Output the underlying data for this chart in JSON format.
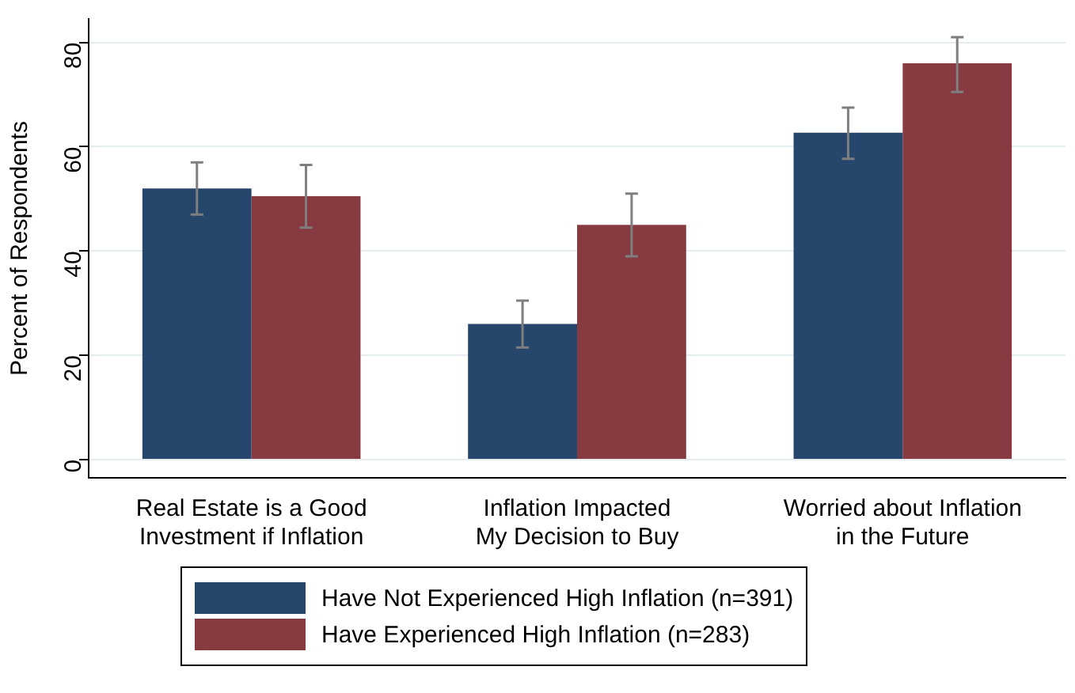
{
  "chart_data": {
    "type": "bar",
    "ylabel": "Percent of Respondents",
    "categories": [
      "Real Estate is a Good\nInvestment if Inflation",
      "Inflation Impacted\nMy Decision to Buy",
      "Worried about Inflation\nin the Future"
    ],
    "series": [
      {
        "name": "Have Not Experienced High Inflation (n=391)",
        "color": "#27466b",
        "values": [
          52,
          26,
          62.7
        ],
        "errors": [
          [
            47,
            57
          ],
          [
            21.5,
            30.5
          ],
          [
            57.7,
            67.5
          ]
        ]
      },
      {
        "name": "Have Experienced High Inflation (n=283)",
        "color": "#873a3f",
        "values": [
          50.5,
          45,
          76
        ],
        "errors": [
          [
            44.5,
            56.5
          ],
          [
            39,
            51
          ],
          [
            70.5,
            81
          ]
        ]
      }
    ],
    "ylim": [
      -3.5,
      84.5
    ],
    "yticks": [
      0,
      20,
      40,
      60,
      80
    ],
    "grid": "y",
    "legend": "bottom"
  }
}
